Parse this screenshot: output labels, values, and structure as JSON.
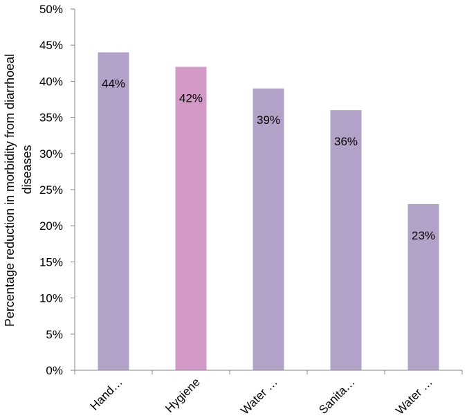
{
  "chart_data": {
    "type": "bar",
    "categories": [
      "Hand…",
      "Hygiene",
      "Water …",
      "Sanita…",
      "Water …"
    ],
    "values": [
      44,
      42,
      39,
      36,
      23
    ],
    "data_labels": [
      "44%",
      "42%",
      "39%",
      "36%",
      "23%"
    ],
    "bar_colors": [
      "#b3a2c7",
      "#d49ac7",
      "#b3a2c7",
      "#b3a2c7",
      "#b3a2c7"
    ],
    "ylabel_lines": [
      "Percentage reduction in morbidity from diarrhoeal",
      "diseases"
    ],
    "xlabel": "",
    "ylim": [
      0,
      50
    ],
    "y_ticks": [
      0,
      5,
      10,
      15,
      20,
      25,
      30,
      35,
      40,
      45,
      50
    ],
    "y_tick_labels": [
      "0%",
      "5%",
      "10%",
      "15%",
      "20%",
      "25%",
      "30%",
      "35%",
      "40%",
      "45%",
      "50%"
    ],
    "gridlines": false,
    "legend": "none"
  }
}
